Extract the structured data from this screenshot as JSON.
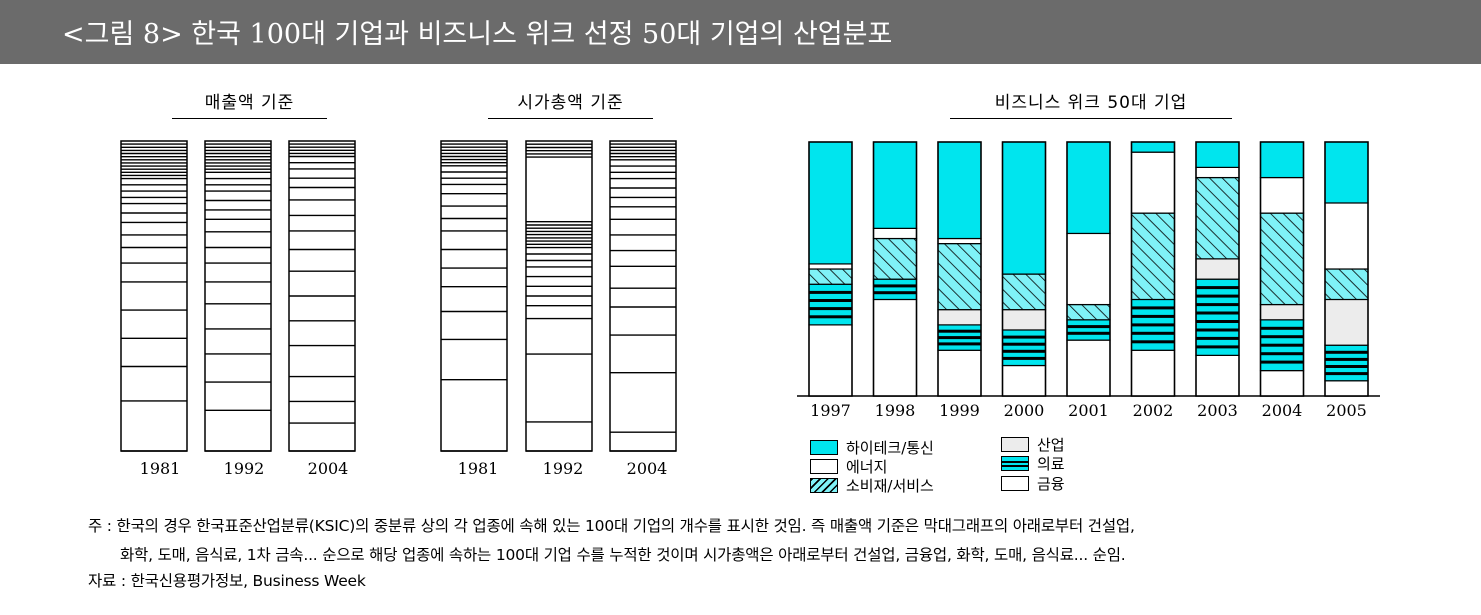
{
  "header": {
    "title": "<그림 8> 한국 100대 기업과 비즈니스 위크 선정 50대 기업의 산업분포"
  },
  "colors": {
    "cyan": "#00e5ee",
    "gray": "#ececec",
    "white": "#ffffff",
    "header_bg": "#6b6b6b"
  },
  "legend": {
    "items": [
      {
        "key": "hightech",
        "label": "하이테크/통신",
        "pattern": "cyan-solid"
      },
      {
        "key": "energy",
        "label": "에너지",
        "pattern": "white-solid"
      },
      {
        "key": "consumer",
        "label": "소비재/서비스",
        "pattern": "cyan-hatched"
      },
      {
        "key": "industrial",
        "label": "산업",
        "pattern": "gray-solid"
      },
      {
        "key": "medical",
        "label": "의료",
        "pattern": "cyan-striped"
      },
      {
        "key": "finance",
        "label": "금융",
        "pattern": "white-solid"
      }
    ]
  },
  "chart_data": [
    {
      "type": "bar",
      "stacked": true,
      "title": "매출액 기준",
      "categories": [
        "1981",
        "1992",
        "2004"
      ],
      "unit": "number of firms per industry",
      "segments_bottom_to_top": [
        [
          0,
          16,
          11,
          9,
          9,
          9,
          6,
          5,
          4,
          4,
          3,
          3,
          2,
          2,
          2,
          2,
          1,
          1,
          1,
          1,
          1,
          1,
          1,
          1,
          1,
          1,
          1,
          1
        ],
        [
          0,
          13,
          9,
          9,
          8,
          8,
          7,
          6,
          5,
          5,
          4,
          3,
          3,
          3,
          2,
          2,
          2,
          1,
          1,
          1,
          1,
          1,
          1,
          1,
          1,
          1,
          1
        ],
        [
          0,
          9,
          7,
          8,
          10,
          8,
          8,
          8,
          7,
          6,
          5,
          5,
          4,
          3,
          3,
          2,
          2,
          1,
          1,
          1,
          1,
          1
        ]
      ]
    },
    {
      "type": "bar",
      "stacked": true,
      "title": "시가총액 기준",
      "categories": [
        "1981",
        "1992",
        "2004"
      ],
      "unit": "number of firms per industry",
      "segments_bottom_to_top": [
        [
          0,
          23,
          13,
          9,
          8,
          6,
          6,
          6,
          4,
          4,
          4,
          3,
          2,
          2,
          2,
          1,
          1,
          1,
          1,
          1,
          1,
          1,
          1
        ],
        [
          0,
          9,
          21,
          11,
          4,
          3,
          3,
          3,
          3,
          2,
          2,
          2,
          1,
          1,
          1,
          1,
          1,
          1,
          1,
          1,
          20,
          1,
          1,
          1,
          1,
          1
        ],
        [
          0,
          6,
          19,
          12,
          9,
          6,
          7,
          5,
          5,
          5,
          4,
          3,
          3,
          3,
          2,
          2,
          2,
          1,
          1,
          1,
          1,
          1,
          1
        ]
      ]
    },
    {
      "type": "bar",
      "stacked": true,
      "title": "비즈니스 위크 50대 기업",
      "categories": [
        "1997",
        "1998",
        "1999",
        "2000",
        "2001",
        "2002",
        "2003",
        "2004",
        "2005"
      ],
      "unit": "number of firms (of 50)",
      "series": [
        {
          "name": "금융",
          "values": [
            14,
            19,
            9,
            6,
            11,
            9,
            8,
            5,
            3
          ]
        },
        {
          "name": "의료",
          "values": [
            8,
            4,
            5,
            7,
            4,
            10,
            15,
            10,
            7
          ]
        },
        {
          "name": "산업",
          "values": [
            0,
            0,
            3,
            4,
            0,
            0,
            4,
            3,
            9
          ]
        },
        {
          "name": "소비재/서비스",
          "values": [
            3,
            8,
            13,
            7,
            3,
            17,
            16,
            18,
            6
          ]
        },
        {
          "name": "에너지",
          "values": [
            1,
            2,
            1,
            0,
            14,
            12,
            2,
            7,
            13
          ]
        },
        {
          "name": "하이테크/통신",
          "values": [
            24,
            17,
            19,
            26,
            18,
            2,
            5,
            7,
            12
          ]
        }
      ],
      "ylim": [
        0,
        50
      ]
    }
  ],
  "notes": {
    "line1": "주 : 한국의 경우 한국표준산업분류(KSIC)의 중분류 상의 각 업종에 속해 있는 100대 기업의 개수를 표시한 것임. 즉 매출액 기준은 막대그래프의 아래로부터 건설업,",
    "line2": "화학, 도매, 음식료, 1차 금속... 순으로 해당 업종에 속하는 100대 기업 수를 누적한 것이며 시가총액은 아래로부터 건설업, 금융업, 화학, 도매, 음식료... 순임.",
    "source": "자료 : 한국신용평가정보, Business Week"
  }
}
